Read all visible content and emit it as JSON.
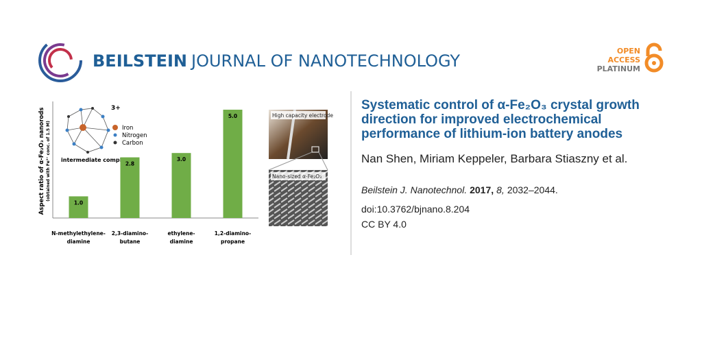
{
  "header": {
    "journal_bold": "BEILSTEIN",
    "journal_rest": "JOURNAL OF NANOTECHNOLOGY",
    "badge": [
      "OPEN",
      "ACCESS",
      "PLATINUM"
    ]
  },
  "article": {
    "title": "Systematic control of α-Fe₂O₃ crystal growth direction for improved electrochemical performance of lithium-ion battery anodes",
    "authors": "Nan Shen, Miriam Keppeler, Barbara Stiaszny et al.",
    "journal": "Beilstein J. Nanotechnol.",
    "year": "2017,",
    "volume": "8,",
    "pages": "2032–2044.",
    "doi": "doi:10.3762/bjnano.8.204",
    "license": "CC BY 4.0"
  },
  "figure": {
    "inset": {
      "charge": "3+",
      "legend": [
        {
          "name": "Iron",
          "color": "#c8642a"
        },
        {
          "name": "Nitrogen",
          "color": "#3b7fc4"
        },
        {
          "name": "Carbon",
          "color": "#333333"
        }
      ],
      "caption": "intermediate complex"
    },
    "photos": [
      "High capacity electrode",
      "Nano-sized α-Fe₂O₃"
    ]
  },
  "chart_data": {
    "type": "bar",
    "ylabel": "Aspect ratio of α-Fe₂O₃ nanorods",
    "ylabel_note": "(obtained with Fe³⁺ conc. of 1.5 M)",
    "categories": [
      "N-methylethylene-\ndiamine",
      "2,3-diamino-\nbutane",
      "ethylene-\ndiamine",
      "1,2-diamino-\npropane"
    ],
    "values": [
      1.0,
      2.8,
      3.0,
      5.0
    ],
    "value_labels": [
      "1.0",
      "2.8",
      "3.0",
      "5.0"
    ],
    "color": "#70ad47",
    "ylim": [
      0,
      5
    ]
  }
}
